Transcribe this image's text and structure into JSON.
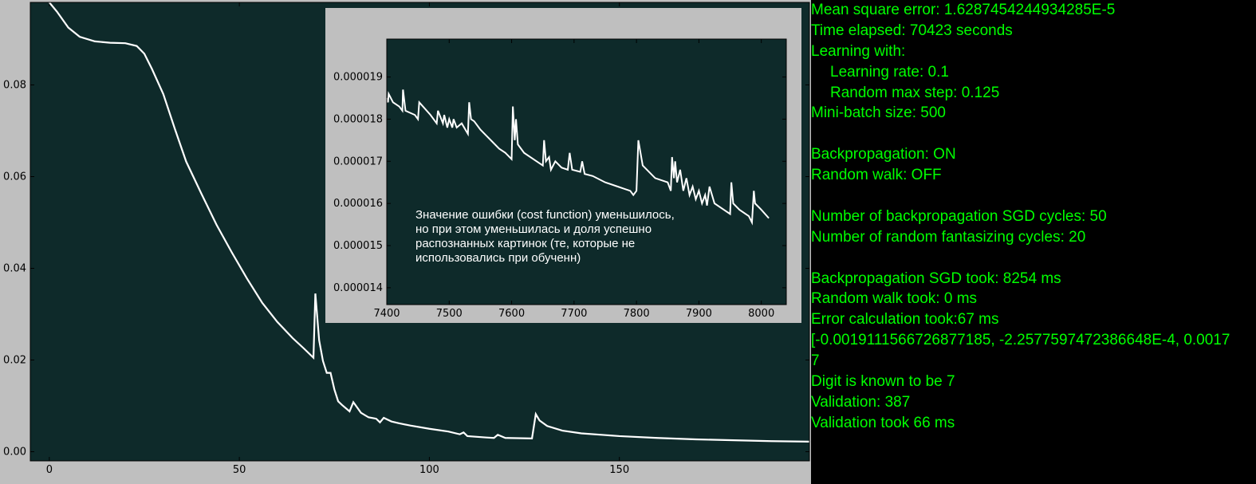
{
  "chart_data": [
    {
      "type": "line",
      "title": "",
      "xlabel": "",
      "ylabel": "",
      "xlim": [
        -5,
        200
      ],
      "ylim": [
        -0.002,
        0.098
      ],
      "x_ticks": [
        0,
        50,
        100,
        150
      ],
      "y_ticks": [
        0.0,
        0.02,
        0.04,
        0.06,
        0.08
      ],
      "x_tick_labels": [
        "0",
        "50",
        "100",
        "150"
      ],
      "y_tick_labels": [
        "0.00",
        "0.02",
        "0.04",
        "0.06",
        "0.08"
      ],
      "grid": false,
      "colors": {
        "background": "#0e2a2a",
        "line": "#ffffff",
        "frame": "#bfbfbf"
      },
      "series": [
        {
          "x": [
            0,
            2,
            5,
            8,
            12,
            16,
            20,
            23,
            25,
            27,
            30,
            33,
            36,
            40,
            44,
            48,
            52,
            56,
            60,
            64,
            67,
            69.5,
            70,
            71,
            72,
            73,
            74,
            75,
            76,
            77,
            79,
            80,
            82,
            84,
            86,
            87,
            88,
            90,
            92,
            95,
            100,
            105,
            108,
            109,
            110,
            115,
            117,
            118,
            120,
            127,
            128,
            129,
            131,
            135,
            140,
            150,
            160,
            170,
            180,
            190,
            200
          ],
          "y": [
            0.098,
            0.096,
            0.0925,
            0.0905,
            0.0895,
            0.0892,
            0.0891,
            0.0885,
            0.0868,
            0.0835,
            0.078,
            0.0705,
            0.0633,
            0.0563,
            0.0495,
            0.0435,
            0.0378,
            0.0325,
            0.0283,
            0.0248,
            0.0225,
            0.0205,
            0.0345,
            0.0243,
            0.0198,
            0.0172,
            0.0172,
            0.0136,
            0.011,
            0.0102,
            0.0088,
            0.0108,
            0.0085,
            0.0075,
            0.0072,
            0.0064,
            0.0074,
            0.0066,
            0.0062,
            0.0057,
            0.005,
            0.0044,
            0.0038,
            0.0042,
            0.0034,
            0.0031,
            0.003,
            0.0037,
            0.003,
            0.0029,
            0.0082,
            0.0068,
            0.0056,
            0.0046,
            0.004,
            0.0034,
            0.003,
            0.0027,
            0.0025,
            0.0023,
            0.0022
          ]
        }
      ]
    },
    {
      "type": "line",
      "title": "",
      "xlabel": "",
      "ylabel": "",
      "xlim": [
        7400,
        8040
      ],
      "ylim": [
        1.36e-05,
        1.99e-05
      ],
      "x_ticks": [
        7400,
        7500,
        7600,
        7700,
        7800,
        7900,
        8000
      ],
      "y_ticks": [
        1.4e-05,
        1.5e-05,
        1.6e-05,
        1.7e-05,
        1.8e-05,
        1.9e-05
      ],
      "x_tick_labels": [
        "7400",
        "7500",
        "7600",
        "7700",
        "7800",
        "7900",
        "8000"
      ],
      "y_tick_labels": [
        "0.000014",
        "0.000015",
        "0.000016",
        "0.000017",
        "0.000018",
        "0.000019"
      ],
      "grid": false,
      "colors": {
        "background": "#0e2a2a",
        "line": "#ffffff",
        "frame": "#bfbfbf"
      },
      "annotation": {
        "lines": [
          "Значение ошибки (cost function) уменьшилось,",
          "но при этом уменьшилась и доля успешно",
          "распознанных картинок (те, которые не",
          "использовались при обученн)"
        ]
      },
      "series": [
        {
          "x": [
            7400,
            7402,
            7403,
            7410,
            7420,
            7425,
            7426,
            7430,
            7445,
            7450,
            7452,
            7470,
            7480,
            7482,
            7490,
            7492,
            7497,
            7500,
            7505,
            7507,
            7512,
            7520,
            7530,
            7532,
            7535,
            7540,
            7550,
            7560,
            7570,
            7580,
            7590,
            7600,
            7602,
            7605,
            7607,
            7610,
            7620,
            7640,
            7650,
            7652,
            7655,
            7660,
            7663,
            7670,
            7680,
            7690,
            7693,
            7697,
            7710,
            7713,
            7717,
            7730,
            7750,
            7770,
            7780,
            7790,
            7795,
            7800,
            7803,
            7810,
            7830,
            7850,
            7855,
            7857,
            7860,
            7862,
            7865,
            7870,
            7875,
            7880,
            7885,
            7890,
            7895,
            7900,
            7905,
            7910,
            7913,
            7917,
            7925,
            7940,
            7950,
            7952,
            7955,
            7965,
            7980,
            7985,
            7988,
            7990,
            8000,
            8012
          ],
          "y": [
            1.85e-05,
            1.84e-05,
            1.86e-05,
            1.84e-05,
            1.83e-05,
            1.82e-05,
            1.87e-05,
            1.82e-05,
            1.81e-05,
            1.8e-05,
            1.84e-05,
            1.81e-05,
            1.79e-05,
            1.82e-05,
            1.79e-05,
            1.81e-05,
            1.78e-05,
            1.8e-05,
            1.78e-05,
            1.8e-05,
            1.78e-05,
            1.79e-05,
            1.765e-05,
            1.84e-05,
            1.8e-05,
            1.795e-05,
            1.775e-05,
            1.76e-05,
            1.745e-05,
            1.73e-05,
            1.72e-05,
            1.705e-05,
            1.83e-05,
            1.75e-05,
            1.8e-05,
            1.74e-05,
            1.72e-05,
            1.7e-05,
            1.69e-05,
            1.75e-05,
            1.7e-05,
            1.71e-05,
            1.68e-05,
            1.7e-05,
            1.685e-05,
            1.68e-05,
            1.72e-05,
            1.68e-05,
            1.675e-05,
            1.7e-05,
            1.67e-05,
            1.665e-05,
            1.65e-05,
            1.64e-05,
            1.635e-05,
            1.63e-05,
            1.62e-05,
            1.63e-05,
            1.75e-05,
            1.69e-05,
            1.66e-05,
            1.65e-05,
            1.63e-05,
            1.71e-05,
            1.66e-05,
            1.7e-05,
            1.65e-05,
            1.68e-05,
            1.63e-05,
            1.66e-05,
            1.62e-05,
            1.64e-05,
            1.61e-05,
            1.63e-05,
            1.6e-05,
            1.62e-05,
            1.595e-05,
            1.64e-05,
            1.6e-05,
            1.585e-05,
            1.575e-05,
            1.65e-05,
            1.6e-05,
            1.585e-05,
            1.57e-05,
            1.555e-05,
            1.63e-05,
            1.6e-05,
            1.585e-05,
            1.565e-05
          ]
        }
      ]
    }
  ],
  "console": {
    "lines": [
      {
        "text": "Mean square error: 1.6287454244934285E-5",
        "indent": false
      },
      {
        "text": "Time elapsed: 70423 seconds",
        "indent": false
      },
      {
        "text": "Learning with:",
        "indent": false
      },
      {
        "text": "Learning rate: 0.1",
        "indent": true
      },
      {
        "text": "Random max step: 0.125",
        "indent": true
      },
      {
        "text": "Mini-batch size: 500",
        "indent": false
      },
      {
        "text": "",
        "indent": false
      },
      {
        "text": "Backpropagation: ON",
        "indent": false
      },
      {
        "text": "Random walk: OFF",
        "indent": false
      },
      {
        "text": "",
        "indent": false
      },
      {
        "text": "Number of backpropagation SGD cycles: 50",
        "indent": false
      },
      {
        "text": "Number of random fantasizing cycles: 20",
        "indent": false
      },
      {
        "text": "",
        "indent": false
      },
      {
        "text": "Backpropagation SGD took: 8254 ms",
        "indent": false
      },
      {
        "text": "Random walk took: 0 ms",
        "indent": false
      },
      {
        "text": "Error calculation took:67 ms",
        "indent": false
      },
      {
        "text": "[-0.0019111566726877185, -2.2577597472386648E-4, 0.0017",
        "indent": false
      },
      {
        "text": "7",
        "indent": false
      },
      {
        "text": "Digit is known to be 7",
        "indent": false
      },
      {
        "text": "Validation: 387",
        "indent": false
      },
      {
        "text": "Validation took 66 ms",
        "indent": false
      }
    ],
    "color": "#00ff00"
  }
}
